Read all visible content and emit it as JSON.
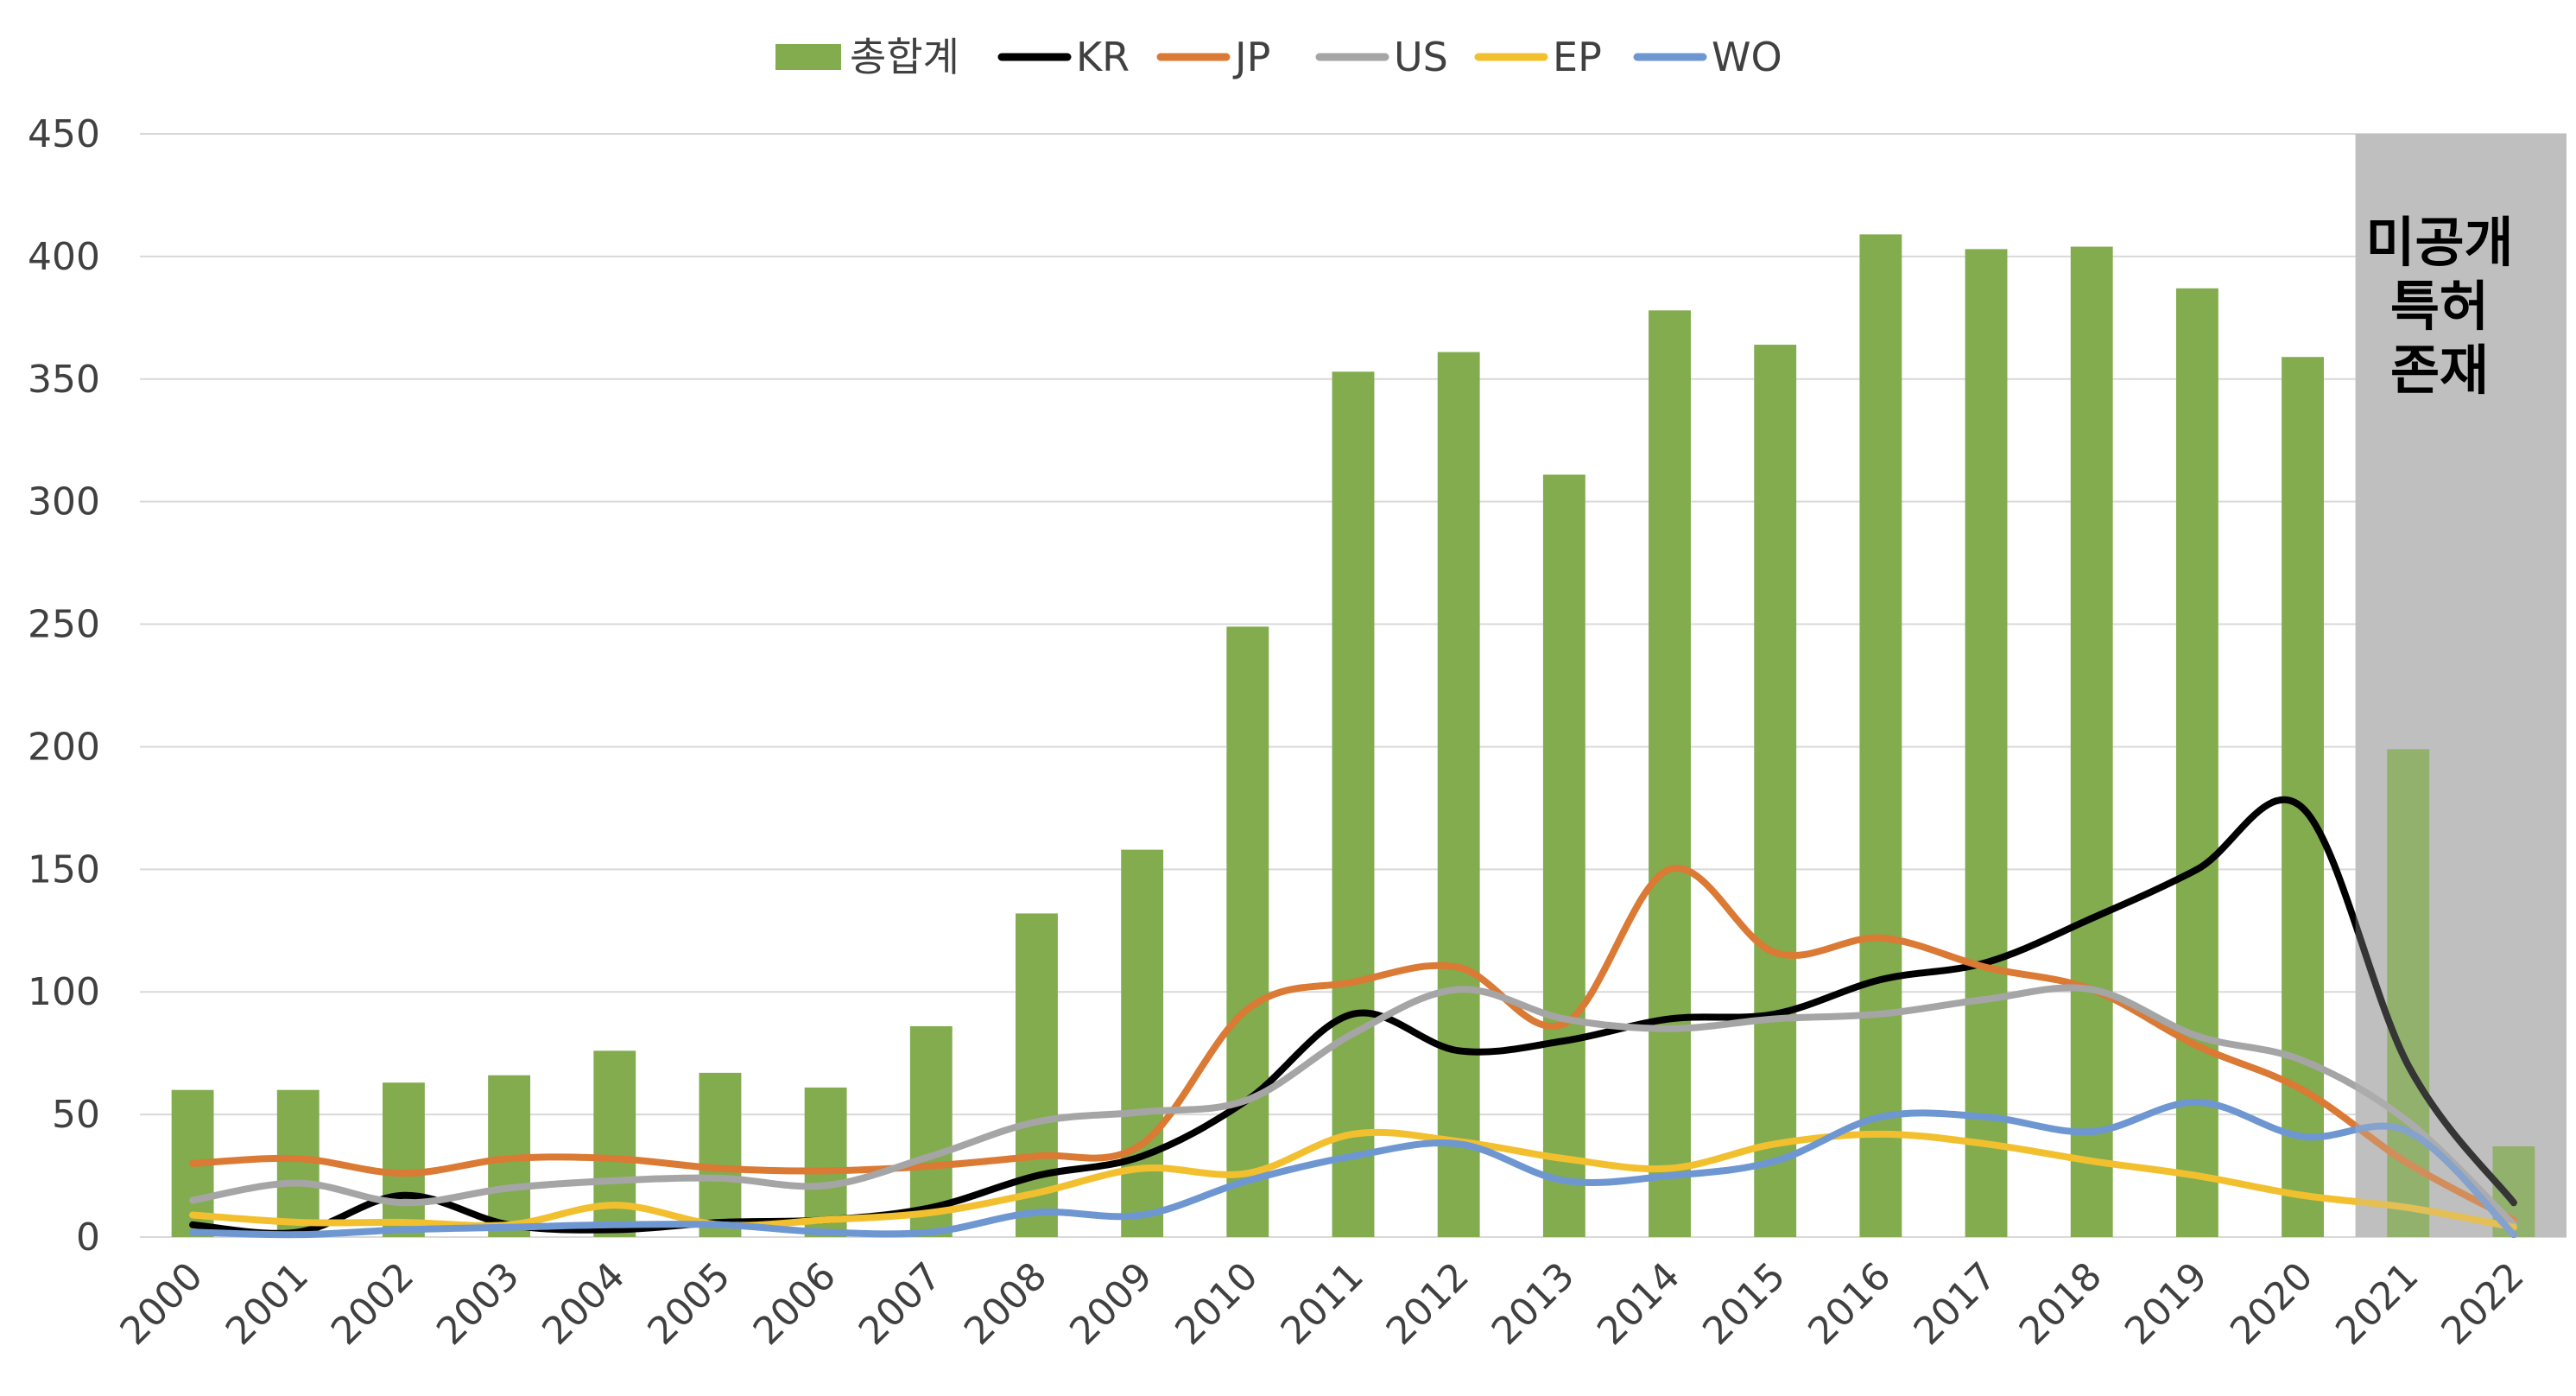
{
  "chart_data": {
    "type": "bar",
    "categories": [
      "2000",
      "2001",
      "2002",
      "2003",
      "2004",
      "2005",
      "2006",
      "2007",
      "2008",
      "2009",
      "2010",
      "2011",
      "2012",
      "2013",
      "2014",
      "2015",
      "2016",
      "2017",
      "2018",
      "2019",
      "2020",
      "2021",
      "2022"
    ],
    "ylim": [
      0,
      450
    ],
    "yticks": [
      0,
      50,
      100,
      150,
      200,
      250,
      300,
      350,
      400,
      450
    ],
    "grid": true,
    "legend_position": "top",
    "series": [
      {
        "name": "총합계",
        "type": "bar",
        "color": "#82AC4E",
        "values": [
          60,
          60,
          63,
          66,
          76,
          67,
          61,
          86,
          132,
          158,
          249,
          353,
          361,
          311,
          378,
          364,
          409,
          403,
          404,
          387,
          359,
          199,
          37
        ]
      },
      {
        "name": "KR",
        "type": "line",
        "color": "#000000",
        "values": [
          5,
          2,
          17,
          5,
          3,
          6,
          7,
          12,
          25,
          33,
          56,
          91,
          76,
          80,
          89,
          91,
          105,
          112,
          130,
          150,
          175,
          70,
          14
        ]
      },
      {
        "name": "JP",
        "type": "line",
        "color": "#DA7A34",
        "values": [
          30,
          32,
          26,
          32,
          32,
          28,
          27,
          29,
          33,
          38,
          93,
          104,
          110,
          87,
          150,
          116,
          122,
          110,
          101,
          78,
          60,
          30,
          7
        ]
      },
      {
        "name": "US",
        "type": "line",
        "color": "#A5A5A5",
        "values": [
          15,
          22,
          14,
          20,
          23,
          24,
          21,
          33,
          47,
          51,
          56,
          83,
          101,
          89,
          85,
          89,
          91,
          97,
          101,
          82,
          72,
          47,
          5
        ]
      },
      {
        "name": "EP",
        "type": "line",
        "color": "#F2C02F",
        "values": [
          9,
          6,
          6,
          5,
          13,
          5,
          7,
          10,
          18,
          28,
          26,
          42,
          39,
          32,
          28,
          38,
          42,
          38,
          31,
          25,
          17,
          12,
          4
        ]
      },
      {
        "name": "WO",
        "type": "line",
        "color": "#6E97D2",
        "values": [
          2,
          1,
          3,
          4,
          5,
          5,
          2,
          2,
          10,
          9,
          23,
          33,
          38,
          23,
          25,
          31,
          49,
          49,
          43,
          55,
          41,
          43,
          1
        ]
      }
    ],
    "shaded_region": {
      "from": "2021",
      "to": "2022",
      "color": "#BFBFBF"
    },
    "annotation": [
      "미공개",
      "특허",
      "존재"
    ]
  }
}
